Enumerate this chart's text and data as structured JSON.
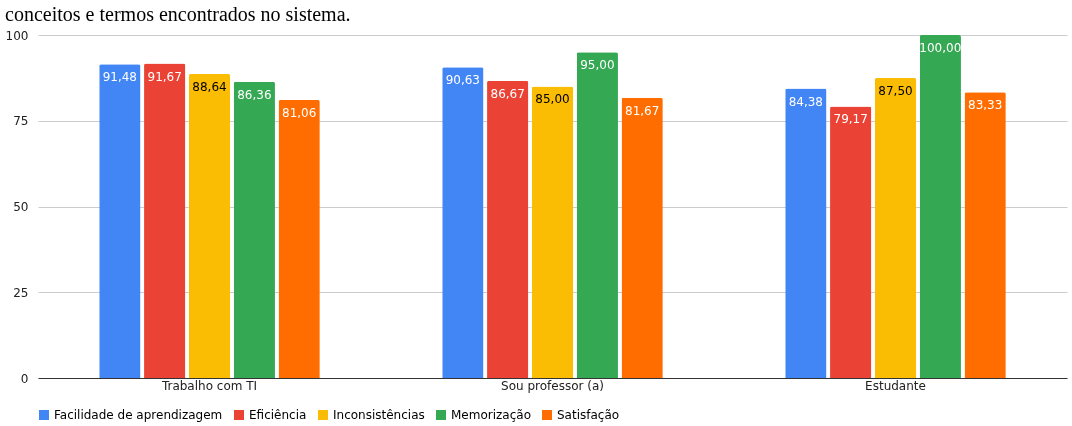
{
  "chart_data": {
    "type": "bar",
    "title": "conceitos e termos encontrados no sistema.",
    "categories": [
      "Trabalho com TI",
      "Sou professor (a)",
      "Estudante"
    ],
    "series": [
      {
        "name": "Facilidade de aprendizagem",
        "color": "#4285f4",
        "values": [
          91.48,
          90.63,
          84.38
        ],
        "value_labels": [
          "91,48",
          "90,63",
          "84,38"
        ]
      },
      {
        "name": "Eficiência",
        "color": "#ea4335",
        "values": [
          91.67,
          86.67,
          79.17
        ],
        "value_labels": [
          "91,67",
          "86,67",
          "79,17"
        ]
      },
      {
        "name": "Inconsistências",
        "color": "#fbbc04",
        "values": [
          88.64,
          85.0,
          87.5
        ],
        "value_labels": [
          "88,64",
          "85,00",
          "87,50"
        ]
      },
      {
        "name": "Memorização",
        "color": "#34a853",
        "values": [
          86.36,
          95.0,
          100.0
        ],
        "value_labels": [
          "86,36",
          "95,00",
          "100,00"
        ]
      },
      {
        "name": "Satisfação",
        "color": "#ff6d01",
        "values": [
          81.06,
          81.67,
          83.33
        ],
        "value_labels": [
          "81,06",
          "81,67",
          "83,33"
        ]
      }
    ],
    "ylim": [
      0,
      100
    ],
    "yticks": [
      0,
      25,
      50,
      75,
      100
    ],
    "grid": "y",
    "legend": "bottom"
  }
}
